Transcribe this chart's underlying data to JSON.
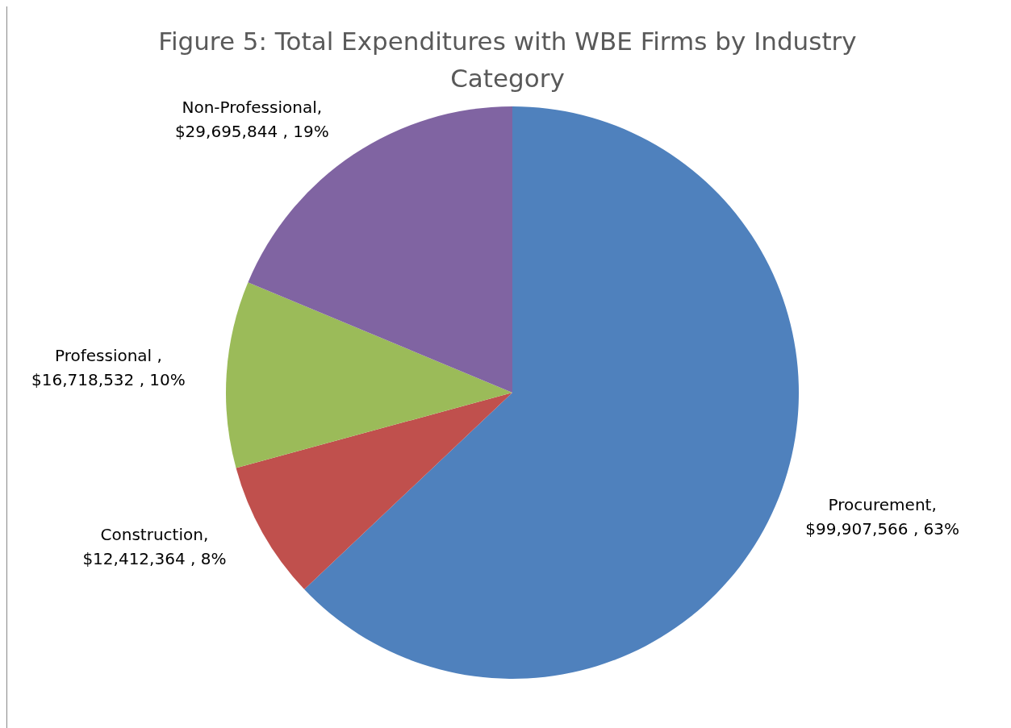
{
  "chart_data": {
    "type": "pie",
    "title": "Figure 5: Total Expenditures with WBE Firms by Industry Category",
    "categories": [
      "Procurement",
      "Construction",
      "Professional",
      "Non-Professional"
    ],
    "values": [
      99907566,
      12412364,
      16718532,
      29695844
    ],
    "value_labels": [
      ", $99,907,566 , 63%",
      ", $12,412,364 , 8%",
      " , $16,718,532 , 10%",
      ", $29,695,844 , 19%"
    ],
    "colors": [
      "#4f81bd",
      "#c0504d",
      "#9bbb59",
      "#8064a2"
    ],
    "legend": false
  }
}
